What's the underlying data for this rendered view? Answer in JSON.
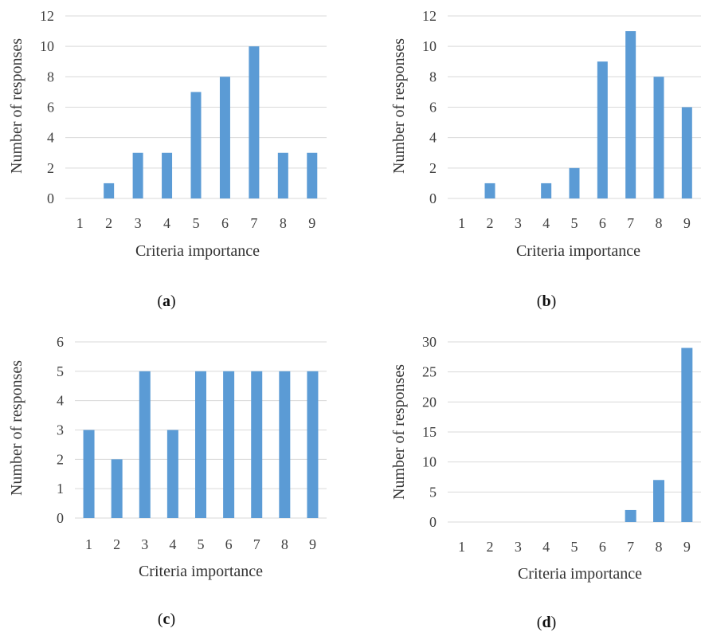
{
  "chart_data": [
    {
      "type": "bar",
      "caption": "a",
      "categories": [
        "1",
        "2",
        "3",
        "4",
        "5",
        "6",
        "7",
        "8",
        "9"
      ],
      "values": [
        0,
        1,
        3,
        3,
        7,
        8,
        10,
        3,
        3
      ],
      "xlabel": "Criteria importance",
      "ylabel": "Number of responses",
      "ylim": [
        0,
        12
      ],
      "yticks": [
        0,
        2,
        4,
        6,
        8,
        10,
        12
      ],
      "grid": true,
      "color": "#5b9bd5"
    },
    {
      "type": "bar",
      "caption": "b",
      "categories": [
        "1",
        "2",
        "3",
        "4",
        "5",
        "6",
        "7",
        "8",
        "9"
      ],
      "values": [
        0,
        1,
        0,
        1,
        2,
        9,
        11,
        8,
        6
      ],
      "xlabel": "Criteria importance",
      "ylabel": "Number of responses",
      "ylim": [
        0,
        12
      ],
      "yticks": [
        0,
        2,
        4,
        6,
        8,
        10,
        12
      ],
      "grid": true,
      "color": "#5b9bd5"
    },
    {
      "type": "bar",
      "caption": "c",
      "categories": [
        "1",
        "2",
        "3",
        "4",
        "5",
        "6",
        "7",
        "8",
        "9"
      ],
      "values": [
        3,
        2,
        5,
        3,
        5,
        5,
        5,
        5,
        5
      ],
      "xlabel": "Criteria importance",
      "ylabel": "Number of responses",
      "ylim": [
        0,
        6
      ],
      "yticks": [
        0,
        1,
        2,
        3,
        4,
        5,
        6
      ],
      "grid": true,
      "color": "#5b9bd5"
    },
    {
      "type": "bar",
      "caption": "d",
      "categories": [
        "1",
        "2",
        "3",
        "4",
        "5",
        "6",
        "7",
        "8",
        "9"
      ],
      "values": [
        0,
        0,
        0,
        0,
        0,
        0,
        2,
        7,
        29
      ],
      "xlabel": "Criteria importance",
      "ylabel": "Number of responses",
      "ylim": [
        0,
        30
      ],
      "yticks": [
        0,
        5,
        10,
        15,
        20,
        25,
        30
      ],
      "grid": true,
      "color": "#5b9bd5"
    }
  ]
}
